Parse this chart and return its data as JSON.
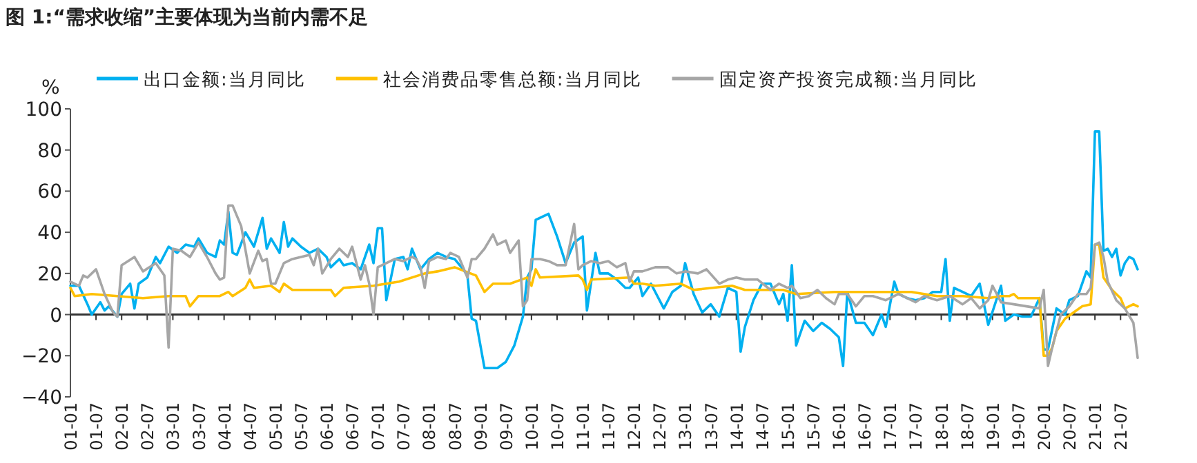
{
  "chart_data": {
    "type": "line",
    "title": "图 1:“需求收缩”主要体现为当前内需不足",
    "ylabel": "%",
    "legend": "top",
    "xlim": [
      "2001-01",
      "2021-11"
    ],
    "xticks": [
      {
        "value": "2001-01",
        "label": "01-01"
      },
      {
        "value": "2001-07",
        "label": "01-07"
      },
      {
        "value": "2002-01",
        "label": "02-01"
      },
      {
        "value": "2002-07",
        "label": "02-07"
      },
      {
        "value": "2003-01",
        "label": "03-01"
      },
      {
        "value": "2003-07",
        "label": "03-07"
      },
      {
        "value": "2004-01",
        "label": "04-01"
      },
      {
        "value": "2004-07",
        "label": "04-07"
      },
      {
        "value": "2005-01",
        "label": "05-01"
      },
      {
        "value": "2005-07",
        "label": "05-07"
      },
      {
        "value": "2006-01",
        "label": "06-01"
      },
      {
        "value": "2006-07",
        "label": "06-07"
      },
      {
        "value": "2007-01",
        "label": "07-01"
      },
      {
        "value": "2007-07",
        "label": "07-07"
      },
      {
        "value": "2008-01",
        "label": "08-01"
      },
      {
        "value": "2008-07",
        "label": "08-07"
      },
      {
        "value": "2009-01",
        "label": "09-01"
      },
      {
        "value": "2009-07",
        "label": "09-07"
      },
      {
        "value": "2010-01",
        "label": "10-01"
      },
      {
        "value": "2010-07",
        "label": "10-07"
      },
      {
        "value": "2011-01",
        "label": "11-01"
      },
      {
        "value": "2011-07",
        "label": "11-07"
      },
      {
        "value": "2012-01",
        "label": "12-01"
      },
      {
        "value": "2012-07",
        "label": "12-07"
      },
      {
        "value": "2013-01",
        "label": "13-01"
      },
      {
        "value": "2013-07",
        "label": "13-07"
      },
      {
        "value": "2014-01",
        "label": "14-01"
      },
      {
        "value": "2014-07",
        "label": "14-07"
      },
      {
        "value": "2015-01",
        "label": "15-01"
      },
      {
        "value": "2015-07",
        "label": "15-07"
      },
      {
        "value": "2016-01",
        "label": "16-01"
      },
      {
        "value": "2016-07",
        "label": "16-07"
      },
      {
        "value": "2017-01",
        "label": "17-01"
      },
      {
        "value": "2017-07",
        "label": "17-07"
      },
      {
        "value": "2018-01",
        "label": "18-01"
      },
      {
        "value": "2018-07",
        "label": "18-07"
      },
      {
        "value": "2019-01",
        "label": "19-01"
      },
      {
        "value": "2019-07",
        "label": "19-07"
      },
      {
        "value": "2020-01",
        "label": "20-01"
      },
      {
        "value": "2020-07",
        "label": "20-07"
      },
      {
        "value": "2021-01",
        "label": "21-01"
      },
      {
        "value": "2021-07",
        "label": "21-07"
      }
    ],
    "ylim": [
      -40,
      100
    ],
    "yticks": [
      -40,
      -20,
      0,
      20,
      40,
      60,
      80,
      100
    ],
    "series": [
      {
        "name": "出口金额:当月同比",
        "color": "#00b0f0",
        "x": [
          "2001-01",
          "2001-03",
          "2001-05",
          "2001-06",
          "2001-08",
          "2001-09",
          "2001-10",
          "2001-12",
          "2002-01",
          "2002-03",
          "2002-04",
          "2002-05",
          "2002-07",
          "2002-09",
          "2002-10",
          "2002-12",
          "2003-02",
          "2003-04",
          "2003-06",
          "2003-07",
          "2003-09",
          "2003-11",
          "2003-12",
          "2004-01",
          "2004-02",
          "2004-03",
          "2004-04",
          "2004-06",
          "2004-08",
          "2004-10",
          "2004-11",
          "2004-12",
          "2005-02",
          "2005-03",
          "2005-04",
          "2005-05",
          "2005-07",
          "2005-09",
          "2005-11",
          "2006-01",
          "2006-02",
          "2006-04",
          "2006-05",
          "2006-07",
          "2006-09",
          "2006-11",
          "2006-12",
          "2007-01",
          "2007-02",
          "2007-03",
          "2007-05",
          "2007-07",
          "2007-08",
          "2007-09",
          "2007-11",
          "2008-01",
          "2008-03",
          "2008-05",
          "2008-07",
          "2008-09",
          "2008-10",
          "2008-11",
          "2008-12",
          "2009-02",
          "2009-05",
          "2009-07",
          "2009-09",
          "2009-11",
          "2009-12",
          "2010-01",
          "2010-02",
          "2010-05",
          "2010-07",
          "2010-09",
          "2010-11",
          "2011-01",
          "2011-02",
          "2011-04",
          "2011-05",
          "2011-07",
          "2011-09",
          "2011-11",
          "2011-12",
          "2012-02",
          "2012-03",
          "2012-05",
          "2012-06",
          "2012-08",
          "2012-10",
          "2012-12",
          "2013-01",
          "2013-03",
          "2013-05",
          "2013-07",
          "2013-09",
          "2013-11",
          "2014-01",
          "2014-02",
          "2014-03",
          "2014-05",
          "2014-07",
          "2014-09",
          "2014-11",
          "2014-12",
          "2015-01",
          "2015-02",
          "2015-03",
          "2015-05",
          "2015-07",
          "2015-09",
          "2015-11",
          "2016-01",
          "2016-02",
          "2016-03",
          "2016-05",
          "2016-07",
          "2016-09",
          "2016-11",
          "2016-12",
          "2017-02",
          "2017-03",
          "2017-05",
          "2017-07",
          "2017-09",
          "2017-11",
          "2018-01",
          "2018-02",
          "2018-03",
          "2018-04",
          "2018-06",
          "2018-08",
          "2018-10",
          "2018-11",
          "2018-12",
          "2019-03",
          "2019-04",
          "2019-06",
          "2019-08",
          "2019-10",
          "2019-12",
          "2020-01",
          "2020-02",
          "2020-03",
          "2020-04",
          "2020-06",
          "2020-07",
          "2020-09",
          "2020-11",
          "2020-12",
          "2021-01",
          "2021-02",
          "2021-03",
          "2021-04",
          "2021-05",
          "2021-06",
          "2021-07",
          "2021-08",
          "2021-09",
          "2021-10",
          "2021-11"
        ],
        "values": [
          14,
          14,
          5,
          0,
          6,
          2,
          4,
          -1,
          10,
          15,
          3,
          15,
          18,
          28,
          25,
          33,
          30,
          34,
          33,
          37,
          30,
          28,
          36,
          34,
          50,
          30,
          29,
          40,
          33,
          47,
          32,
          37,
          30,
          45,
          33,
          37,
          33,
          30,
          32,
          28,
          23,
          27,
          24,
          25,
          22,
          34,
          25,
          42,
          42,
          7,
          27,
          28,
          22,
          32,
          22,
          27,
          30,
          28,
          27,
          22,
          19,
          -2,
          -3,
          -26,
          -26,
          -23,
          -15,
          -1,
          18,
          22,
          46,
          49,
          38,
          25,
          35,
          38,
          2,
          30,
          20,
          20,
          17,
          13,
          13,
          18,
          9,
          15,
          11,
          3,
          11,
          14,
          25,
          10,
          1,
          5,
          -1,
          13,
          11,
          -18,
          -6,
          7,
          15,
          15,
          5,
          10,
          -3,
          24,
          -15,
          -3,
          -8,
          -4,
          -7,
          -11,
          -25,
          11,
          -4,
          -4,
          -10,
          0,
          -6,
          16,
          10,
          8,
          7,
          8,
          11,
          11,
          27,
          -3,
          13,
          11,
          9,
          15,
          5,
          -5,
          14,
          -3,
          0,
          -1,
          -1,
          8,
          -17,
          -17,
          -7,
          3,
          0,
          7,
          9,
          21,
          18,
          89,
          89,
          31,
          32,
          28,
          32,
          19,
          25,
          28,
          27,
          22
        ]
      },
      {
        "name": "社会消费品零售总额:当月同比",
        "color": "#ffc000",
        "x": [
          "2001-01",
          "2001-02",
          "2001-06",
          "2001-12",
          "2002-06",
          "2002-12",
          "2003-04",
          "2003-05",
          "2003-07",
          "2003-12",
          "2004-02",
          "2004-03",
          "2004-06",
          "2004-07",
          "2004-08",
          "2004-12",
          "2005-02",
          "2005-03",
          "2005-05",
          "2005-12",
          "2006-02",
          "2006-03",
          "2006-05",
          "2006-12",
          "2007-06",
          "2007-12",
          "2008-03",
          "2008-07",
          "2008-12",
          "2009-02",
          "2009-04",
          "2009-08",
          "2009-12",
          "2010-01",
          "2010-02",
          "2010-03",
          "2010-12",
          "2011-01",
          "2011-02",
          "2011-03",
          "2011-12",
          "2012-01",
          "2012-03",
          "2012-06",
          "2012-12",
          "2013-03",
          "2013-12",
          "2014-03",
          "2014-12",
          "2015-03",
          "2015-12",
          "2016-12",
          "2017-06",
          "2017-12",
          "2018-06",
          "2018-12",
          "2019-03",
          "2019-05",
          "2019-06",
          "2019-07",
          "2019-12",
          "2020-01",
          "2020-02",
          "2020-03",
          "2020-04",
          "2020-06",
          "2020-08",
          "2020-10",
          "2020-12",
          "2021-01",
          "2021-02",
          "2021-03",
          "2021-05",
          "2021-07",
          "2021-08",
          "2021-09",
          "2021-10",
          "2021-11"
        ],
        "values": [
          13,
          9,
          10,
          9,
          8,
          9,
          9,
          4,
          9,
          9,
          11,
          9,
          13,
          17,
          13,
          14,
          11,
          15,
          12,
          12,
          12,
          9,
          13,
          14,
          16,
          20,
          21,
          23,
          19,
          11,
          15,
          15,
          18,
          14,
          22,
          18,
          19,
          17,
          12,
          17,
          18,
          15,
          15,
          14,
          15,
          12,
          14,
          12,
          12,
          10,
          11,
          11,
          11,
          9,
          9,
          8,
          9,
          9,
          10,
          8,
          8,
          -20,
          -20,
          -16,
          -8,
          -2,
          1,
          4,
          5,
          34,
          34,
          18,
          12,
          8,
          3,
          4,
          5,
          4
        ]
      },
      {
        "name": "固定资产投资完成额:当月同比",
        "color": "#a6a6a6",
        "x": [
          "2001-01",
          "2001-03",
          "2001-04",
          "2001-05",
          "2001-07",
          "2001-09",
          "2001-11",
          "2001-12",
          "2002-01",
          "2002-04",
          "2002-06",
          "2002-09",
          "2002-11",
          "2002-12",
          "2003-01",
          "2003-03",
          "2003-05",
          "2003-07",
          "2003-09",
          "2003-11",
          "2003-12",
          "2004-01",
          "2004-02",
          "2004-03",
          "2004-05",
          "2004-07",
          "2004-09",
          "2004-10",
          "2004-11",
          "2004-12",
          "2005-01",
          "2005-03",
          "2005-05",
          "2005-07",
          "2005-09",
          "2005-10",
          "2005-11",
          "2005-12",
          "2006-02",
          "2006-04",
          "2006-06",
          "2006-07",
          "2006-09",
          "2006-10",
          "2006-11",
          "2006-12",
          "2007-01",
          "2007-03",
          "2007-05",
          "2007-07",
          "2007-09",
          "2007-10",
          "2007-11",
          "2007-12",
          "2008-01",
          "2008-03",
          "2008-05",
          "2008-06",
          "2008-08",
          "2008-10",
          "2008-11",
          "2008-12",
          "2009-02",
          "2009-04",
          "2009-05",
          "2009-07",
          "2009-08",
          "2009-09",
          "2009-10",
          "2009-11",
          "2009-12",
          "2010-01",
          "2010-03",
          "2010-05",
          "2010-07",
          "2010-09",
          "2010-11",
          "2010-12",
          "2011-01",
          "2011-03",
          "2011-05",
          "2011-07",
          "2011-09",
          "2011-11",
          "2011-12",
          "2012-01",
          "2012-03",
          "2012-06",
          "2012-09",
          "2012-11",
          "2013-01",
          "2013-04",
          "2013-06",
          "2013-09",
          "2013-11",
          "2014-01",
          "2014-03",
          "2014-06",
          "2014-09",
          "2014-11",
          "2015-01",
          "2015-02",
          "2015-04",
          "2015-06",
          "2015-08",
          "2015-10",
          "2015-12",
          "2016-01",
          "2016-03",
          "2016-05",
          "2016-07",
          "2016-09",
          "2016-12",
          "2017-03",
          "2017-05",
          "2017-07",
          "2017-09",
          "2017-12",
          "2018-03",
          "2018-06",
          "2018-08",
          "2018-10",
          "2018-12",
          "2019-01",
          "2019-03",
          "2019-06",
          "2019-09",
          "2019-12",
          "2020-01",
          "2020-02",
          "2020-03",
          "2020-05",
          "2020-07",
          "2020-09",
          "2020-11",
          "2020-12",
          "2021-01",
          "2021-02",
          "2021-03",
          "2021-04",
          "2021-06",
          "2021-08",
          "2021-10",
          "2021-11"
        ],
        "values": [
          16,
          14,
          19,
          18,
          22,
          10,
          1,
          -1,
          24,
          28,
          21,
          25,
          19,
          -16,
          32,
          31,
          28,
          35,
          28,
          20,
          17,
          18,
          53,
          53,
          43,
          20,
          31,
          26,
          27,
          15,
          15,
          25,
          27,
          28,
          29,
          24,
          32,
          20,
          27,
          32,
          28,
          33,
          17,
          24,
          15,
          0,
          23,
          25,
          27,
          26,
          28,
          27,
          23,
          13,
          26,
          28,
          27,
          30,
          28,
          18,
          27,
          27,
          32,
          39,
          34,
          36,
          30,
          33,
          36,
          4,
          7,
          27,
          27,
          26,
          24,
          24,
          44,
          22,
          24,
          26,
          25,
          26,
          23,
          25,
          16,
          21,
          21,
          23,
          23,
          20,
          21,
          20,
          22,
          15,
          17,
          18,
          17,
          17,
          12,
          15,
          13,
          14,
          8,
          9,
          12,
          8,
          5,
          10,
          10,
          4,
          9,
          9,
          7,
          10,
          8,
          6,
          9,
          7,
          9,
          5,
          8,
          3,
          7,
          14,
          6,
          5,
          4,
          3,
          12,
          -25,
          -16,
          0,
          4,
          10,
          10,
          13,
          34,
          35,
          28,
          16,
          7,
          3,
          -4,
          -21
        ]
      }
    ]
  }
}
